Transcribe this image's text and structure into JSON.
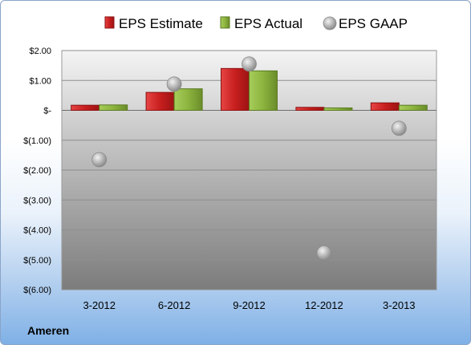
{
  "company_label": "Ameren",
  "colors": {
    "estimate": "#d42a2a",
    "actual": "#8cb43e",
    "gaap": "#a9a9a9"
  },
  "chart_data": {
    "type": "bar",
    "title": "",
    "xlabel": "",
    "ylabel": "",
    "categories": [
      "3-2012",
      "6-2012",
      "9-2012",
      "12-2012",
      "3-2013"
    ],
    "series": [
      {
        "name": "EPS Estimate",
        "kind": "bar",
        "values": [
          0.17,
          0.6,
          1.4,
          0.1,
          0.25
        ]
      },
      {
        "name": "EPS Actual",
        "kind": "bar",
        "values": [
          0.18,
          0.72,
          1.32,
          0.08,
          0.17
        ]
      },
      {
        "name": "EPS GAAP",
        "kind": "scatter",
        "values": [
          -1.65,
          0.88,
          1.55,
          -4.77,
          -0.6
        ]
      }
    ],
    "ylim": [
      -6,
      2
    ],
    "yticks": [
      2,
      1,
      0,
      -1,
      -2,
      -3,
      -4,
      -5,
      -6
    ],
    "ytick_labels": [
      "$2.00",
      "$1.00",
      "$-",
      "$(1.00)",
      "$(2.00)",
      "$(3.00)",
      "$(4.00)",
      "$(5.00)",
      "$(6.00)"
    ],
    "grid": true,
    "legend_position": "top"
  }
}
